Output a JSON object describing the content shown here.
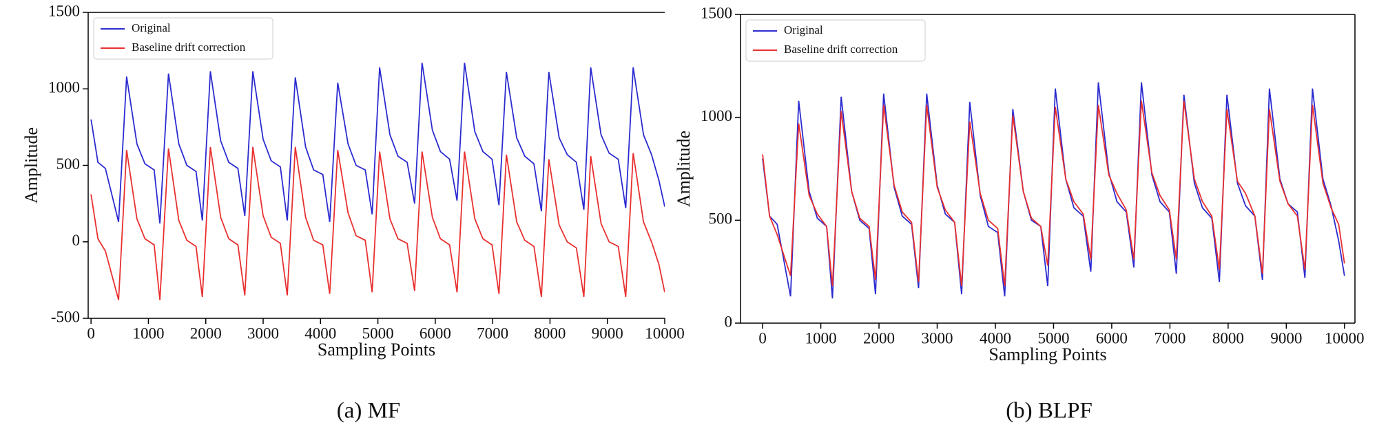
{
  "chart_data": [
    {
      "type": "line",
      "title": "(a) MF",
      "x_label": "Sampling Points",
      "y_label": "Amplitude",
      "xlim": [
        -50,
        10000
      ],
      "ylim": [
        -500,
        1500
      ],
      "xticks": [
        0,
        1000,
        2000,
        3000,
        4000,
        5000,
        6000,
        7000,
        8000,
        9000,
        10000
      ],
      "yticks": [
        -500,
        0,
        500,
        1000,
        1500
      ],
      "legend": "upper left",
      "frame": "top-left",
      "x": [
        0,
        120,
        250,
        480,
        620,
        800,
        940,
        1100,
        1200,
        1350,
        1530,
        1670,
        1830,
        1940,
        2080,
        2260,
        2400,
        2560,
        2680,
        2820,
        3000,
        3140,
        3300,
        3420,
        3560,
        3740,
        3880,
        4040,
        4160,
        4300,
        4480,
        4620,
        4780,
        4900,
        5030,
        5210,
        5350,
        5510,
        5640,
        5770,
        5950,
        6090,
        6250,
        6380,
        6510,
        6690,
        6830,
        6990,
        7110,
        7240,
        7420,
        7560,
        7720,
        7850,
        7980,
        8160,
        8300,
        8460,
        8590,
        8710,
        8890,
        9030,
        9190,
        9320,
        9450,
        9630,
        9770,
        9900,
        10000
      ],
      "series": [
        {
          "name": "Original",
          "color": "#2b2bd0",
          "values": [
            800,
            520,
            480,
            130,
            1080,
            640,
            510,
            470,
            120,
            1100,
            640,
            500,
            460,
            140,
            1115,
            660,
            520,
            480,
            170,
            1115,
            670,
            530,
            490,
            140,
            1075,
            620,
            470,
            440,
            130,
            1040,
            640,
            500,
            470,
            180,
            1140,
            700,
            560,
            520,
            250,
            1170,
            730,
            590,
            540,
            270,
            1170,
            720,
            590,
            540,
            240,
            1110,
            680,
            560,
            510,
            200,
            1110,
            680,
            570,
            520,
            210,
            1140,
            700,
            580,
            540,
            220,
            1140,
            700,
            570,
            400,
            230
          ]
        },
        {
          "name": "Baseline drift correction",
          "color": "#e8302f",
          "values": [
            310,
            20,
            -60,
            -380,
            600,
            150,
            20,
            -20,
            -380,
            610,
            140,
            10,
            -30,
            -360,
            620,
            160,
            20,
            -20,
            -350,
            620,
            170,
            30,
            -10,
            -350,
            620,
            160,
            10,
            -20,
            -340,
            600,
            190,
            40,
            10,
            -330,
            590,
            150,
            20,
            -10,
            -320,
            590,
            160,
            20,
            -20,
            -330,
            590,
            150,
            20,
            -20,
            -340,
            570,
            130,
            10,
            -30,
            -360,
            540,
            110,
            0,
            -40,
            -360,
            560,
            120,
            0,
            -30,
            -360,
            580,
            130,
            0,
            -150,
            -330
          ]
        }
      ]
    },
    {
      "type": "line",
      "title": "(b) BLPF",
      "x_label": "Sampling Points",
      "y_label": "Amplitude",
      "xlim": [
        -380,
        10180
      ],
      "ylim": [
        0,
        1500
      ],
      "xticks": [
        0,
        1000,
        2000,
        3000,
        4000,
        5000,
        6000,
        7000,
        8000,
        9000,
        10000
      ],
      "yticks": [
        0,
        500,
        1000,
        1500
      ],
      "legend": "upper left",
      "frame": "box",
      "x": [
        0,
        120,
        250,
        480,
        620,
        800,
        940,
        1100,
        1200,
        1350,
        1530,
        1670,
        1830,
        1940,
        2080,
        2260,
        2400,
        2560,
        2680,
        2820,
        3000,
        3140,
        3300,
        3420,
        3560,
        3740,
        3880,
        4040,
        4160,
        4300,
        4480,
        4620,
        4780,
        4900,
        5030,
        5210,
        5350,
        5510,
        5640,
        5770,
        5950,
        6090,
        6250,
        6380,
        6510,
        6690,
        6830,
        6990,
        7110,
        7240,
        7420,
        7560,
        7720,
        7850,
        7980,
        8160,
        8300,
        8460,
        8590,
        8710,
        8890,
        9030,
        9190,
        9320,
        9450,
        9630,
        9770,
        9900,
        10000
      ],
      "series": [
        {
          "name": "Original",
          "color": "#2b2bd0",
          "values": [
            800,
            520,
            480,
            130,
            1080,
            640,
            510,
            470,
            120,
            1100,
            640,
            500,
            460,
            140,
            1115,
            660,
            520,
            480,
            170,
            1115,
            670,
            530,
            490,
            140,
            1075,
            620,
            470,
            440,
            130,
            1040,
            640,
            500,
            470,
            180,
            1140,
            700,
            560,
            520,
            250,
            1170,
            730,
            590,
            540,
            270,
            1170,
            720,
            590,
            540,
            240,
            1110,
            680,
            560,
            510,
            200,
            1110,
            680,
            570,
            520,
            210,
            1140,
            700,
            580,
            540,
            220,
            1140,
            700,
            570,
            400,
            230
          ]
        },
        {
          "name": "Baseline drift correction",
          "color": "#e8302f",
          "values": [
            820,
            520,
            430,
            230,
            970,
            620,
            530,
            470,
            180,
            1030,
            640,
            510,
            470,
            210,
            1060,
            670,
            540,
            490,
            200,
            1060,
            660,
            550,
            490,
            180,
            980,
            630,
            500,
            460,
            180,
            1010,
            640,
            510,
            470,
            280,
            1050,
            700,
            590,
            530,
            310,
            1060,
            720,
            630,
            550,
            310,
            1080,
            730,
            620,
            550,
            310,
            1080,
            700,
            590,
            520,
            260,
            1040,
            690,
            630,
            520,
            240,
            1040,
            690,
            580,
            520,
            260,
            1060,
            680,
            560,
            480,
            290
          ]
        }
      ]
    }
  ]
}
